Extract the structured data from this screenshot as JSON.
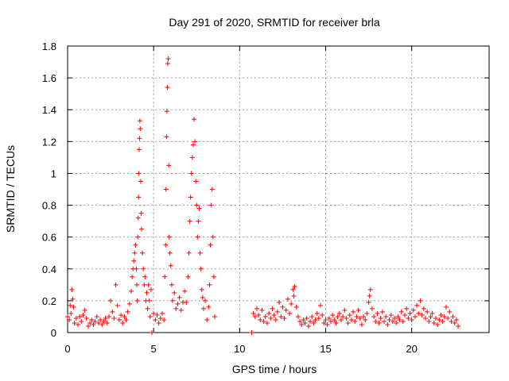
{
  "chart_data": {
    "type": "scatter",
    "title": "Day 291 of 2020, SRMTID for receiver brla",
    "xlabel": "GPS time / hours",
    "ylabel": "SRMTID / TECUs",
    "xlim": [
      0,
      24.5
    ],
    "ylim": [
      0,
      1.8
    ],
    "xticks": [
      0,
      5,
      10,
      15,
      20
    ],
    "xtick_labels": [
      "0",
      "5",
      "10",
      "15",
      "20"
    ],
    "yticks": [
      0,
      0.2,
      0.4,
      0.6,
      0.8,
      1.0,
      1.2,
      1.4,
      1.6,
      1.8
    ],
    "ytick_labels": [
      "0",
      "0.2",
      "0.4",
      "0.6",
      "0.8",
      "1",
      "1.2",
      "1.4",
      "1.6",
      "1.8"
    ],
    "grid": true,
    "marker": "+",
    "color": "#ff0000",
    "series": [
      {
        "name": "SRMTID",
        "points": [
          [
            0.0,
            0.1
          ],
          [
            0.1,
            0.08
          ],
          [
            0.15,
            0.17
          ],
          [
            0.2,
            0.12
          ],
          [
            0.25,
            0.27
          ],
          [
            0.3,
            0.21
          ],
          [
            0.35,
            0.16
          ],
          [
            0.4,
            0.06
          ],
          [
            0.5,
            0.09
          ],
          [
            0.6,
            0.05
          ],
          [
            0.7,
            0.1
          ],
          [
            0.8,
            0.07
          ],
          [
            0.9,
            0.11
          ],
          [
            1.0,
            0.14
          ],
          [
            1.1,
            0.09
          ],
          [
            1.2,
            0.04
          ],
          [
            1.3,
            0.06
          ],
          [
            1.4,
            0.08
          ],
          [
            1.5,
            0.05
          ],
          [
            1.6,
            0.07
          ],
          [
            1.7,
            0.1
          ],
          [
            1.8,
            0.06
          ],
          [
            1.9,
            0.08
          ],
          [
            2.0,
            0.05
          ],
          [
            2.1,
            0.07
          ],
          [
            2.2,
            0.09
          ],
          [
            2.3,
            0.06
          ],
          [
            2.4,
            0.1
          ],
          [
            2.5,
            0.2
          ],
          [
            2.6,
            0.13
          ],
          [
            2.7,
            0.09
          ],
          [
            2.8,
            0.3
          ],
          [
            2.9,
            0.17
          ],
          [
            3.0,
            0.08
          ],
          [
            3.1,
            0.11
          ],
          [
            3.2,
            0.06
          ],
          [
            3.3,
            0.1
          ],
          [
            3.4,
            0.08
          ],
          [
            3.5,
            0.13
          ],
          [
            3.6,
            0.18
          ],
          [
            3.7,
            0.26
          ],
          [
            3.75,
            0.35
          ],
          [
            3.8,
            0.4
          ],
          [
            3.85,
            0.45
          ],
          [
            3.9,
            0.5
          ],
          [
            3.95,
            0.55
          ],
          [
            4.0,
            0.4
          ],
          [
            4.02,
            0.3
          ],
          [
            4.05,
            0.2
          ],
          [
            4.08,
            0.6
          ],
          [
            4.1,
            0.72
          ],
          [
            4.12,
            0.85
          ],
          [
            4.14,
            1.0
          ],
          [
            4.16,
            1.15
          ],
          [
            4.18,
            1.22
          ],
          [
            4.2,
            1.33
          ],
          [
            4.22,
            1.28
          ],
          [
            4.25,
            0.95
          ],
          [
            4.28,
            0.75
          ],
          [
            4.3,
            0.65
          ],
          [
            4.35,
            0.5
          ],
          [
            4.4,
            0.4
          ],
          [
            4.45,
            0.3
          ],
          [
            4.5,
            0.35
          ],
          [
            4.55,
            0.2
          ],
          [
            4.6,
            0.25
          ],
          [
            4.65,
            0.15
          ],
          [
            4.7,
            0.3
          ],
          [
            4.75,
            0.2
          ],
          [
            4.8,
            0.1
          ],
          [
            4.85,
            0.27
          ],
          [
            4.9,
            0.0
          ],
          [
            5.0,
            0.12
          ],
          [
            5.1,
            0.08
          ],
          [
            5.2,
            0.11
          ],
          [
            5.3,
            0.06
          ],
          [
            5.4,
            0.09
          ],
          [
            5.5,
            0.12
          ],
          [
            5.6,
            0.08
          ],
          [
            5.65,
            0.35
          ],
          [
            5.7,
            0.55
          ],
          [
            5.72,
            0.9
          ],
          [
            5.75,
            1.23
          ],
          [
            5.77,
            1.39
          ],
          [
            5.8,
            1.54
          ],
          [
            5.82,
            1.69
          ],
          [
            5.85,
            1.72
          ],
          [
            5.88,
            1.05
          ],
          [
            5.9,
            0.6
          ],
          [
            5.95,
            0.5
          ],
          [
            6.0,
            0.42
          ],
          [
            6.05,
            0.3
          ],
          [
            6.1,
            0.2
          ],
          [
            6.2,
            0.25
          ],
          [
            6.3,
            0.15
          ],
          [
            6.4,
            0.18
          ],
          [
            6.5,
            0.22
          ],
          [
            6.6,
            0.14
          ],
          [
            6.7,
            0.19
          ],
          [
            6.8,
            0.26
          ],
          [
            6.9,
            0.19
          ],
          [
            7.0,
            0.35
          ],
          [
            7.05,
            0.5
          ],
          [
            7.1,
            0.7
          ],
          [
            7.15,
            0.85
          ],
          [
            7.2,
            1.0
          ],
          [
            7.25,
            1.1
          ],
          [
            7.3,
            1.18
          ],
          [
            7.35,
            1.34
          ],
          [
            7.4,
            1.2
          ],
          [
            7.45,
            0.95
          ],
          [
            7.5,
            0.8
          ],
          [
            7.55,
            0.6
          ],
          [
            7.6,
            0.7
          ],
          [
            7.65,
            0.78
          ],
          [
            7.7,
            0.5
          ],
          [
            7.75,
            0.4
          ],
          [
            7.8,
            0.27
          ],
          [
            7.85,
            0.22
          ],
          [
            7.9,
            0.15
          ],
          [
            8.0,
            0.2
          ],
          [
            8.1,
            0.08
          ],
          [
            8.2,
            0.16
          ],
          [
            8.25,
            0.3
          ],
          [
            8.3,
            0.55
          ],
          [
            8.35,
            0.8
          ],
          [
            8.4,
            0.9
          ],
          [
            8.45,
            0.6
          ],
          [
            8.5,
            0.35
          ],
          [
            8.55,
            0.1
          ],
          [
            10.7,
            0.0
          ],
          [
            10.8,
            0.12
          ],
          [
            10.9,
            0.1
          ],
          [
            11.0,
            0.15
          ],
          [
            11.1,
            0.11
          ],
          [
            11.2,
            0.08
          ],
          [
            11.3,
            0.14
          ],
          [
            11.4,
            0.07
          ],
          [
            11.5,
            0.1
          ],
          [
            11.6,
            0.06
          ],
          [
            11.7,
            0.12
          ],
          [
            11.8,
            0.09
          ],
          [
            11.9,
            0.15
          ],
          [
            12.0,
            0.11
          ],
          [
            12.1,
            0.08
          ],
          [
            12.2,
            0.13
          ],
          [
            12.3,
            0.19
          ],
          [
            12.4,
            0.1
          ],
          [
            12.5,
            0.16
          ],
          [
            12.6,
            0.09
          ],
          [
            12.7,
            0.14
          ],
          [
            12.8,
            0.21
          ],
          [
            12.9,
            0.12
          ],
          [
            13.0,
            0.18
          ],
          [
            13.1,
            0.27
          ],
          [
            13.15,
            0.23
          ],
          [
            13.2,
            0.29
          ],
          [
            13.3,
            0.16
          ],
          [
            13.4,
            0.1
          ],
          [
            13.5,
            0.07
          ],
          [
            13.6,
            0.05
          ],
          [
            13.7,
            0.08
          ],
          [
            13.8,
            0.06
          ],
          [
            13.9,
            0.09
          ],
          [
            14.0,
            0.04
          ],
          [
            14.1,
            0.07
          ],
          [
            14.2,
            0.1
          ],
          [
            14.3,
            0.06
          ],
          [
            14.4,
            0.08
          ],
          [
            14.5,
            0.12
          ],
          [
            14.6,
            0.09
          ],
          [
            14.7,
            0.17
          ],
          [
            14.8,
            0.11
          ],
          [
            14.9,
            0.06
          ],
          [
            15.0,
            0.08
          ],
          [
            15.1,
            0.05
          ],
          [
            15.2,
            0.09
          ],
          [
            15.3,
            0.07
          ],
          [
            15.4,
            0.11
          ],
          [
            15.5,
            0.08
          ],
          [
            15.6,
            0.06
          ],
          [
            15.7,
            0.1
          ],
          [
            15.8,
            0.12
          ],
          [
            15.9,
            0.08
          ],
          [
            16.0,
            0.1
          ],
          [
            16.1,
            0.14
          ],
          [
            16.2,
            0.09
          ],
          [
            16.3,
            0.06
          ],
          [
            16.4,
            0.11
          ],
          [
            16.5,
            0.08
          ],
          [
            16.6,
            0.13
          ],
          [
            16.7,
            0.07
          ],
          [
            16.8,
            0.1
          ],
          [
            16.9,
            0.14
          ],
          [
            17.0,
            0.09
          ],
          [
            17.1,
            0.05
          ],
          [
            17.2,
            0.1
          ],
          [
            17.3,
            0.08
          ],
          [
            17.4,
            0.12
          ],
          [
            17.5,
            0.19
          ],
          [
            17.55,
            0.23
          ],
          [
            17.6,
            0.27
          ],
          [
            17.7,
            0.15
          ],
          [
            17.8,
            0.1
          ],
          [
            17.9,
            0.07
          ],
          [
            18.0,
            0.12
          ],
          [
            18.1,
            0.06
          ],
          [
            18.2,
            0.09
          ],
          [
            18.3,
            0.13
          ],
          [
            18.4,
            0.07
          ],
          [
            18.5,
            0.1
          ],
          [
            18.6,
            0.05
          ],
          [
            18.7,
            0.08
          ],
          [
            18.8,
            0.11
          ],
          [
            18.9,
            0.07
          ],
          [
            19.0,
            0.09
          ],
          [
            19.1,
            0.06
          ],
          [
            19.2,
            0.1
          ],
          [
            19.3,
            0.08
          ],
          [
            19.4,
            0.13
          ],
          [
            19.5,
            0.07
          ],
          [
            19.6,
            0.11
          ],
          [
            19.7,
            0.15
          ],
          [
            19.8,
            0.09
          ],
          [
            19.9,
            0.12
          ],
          [
            20.0,
            0.08
          ],
          [
            20.1,
            0.14
          ],
          [
            20.2,
            0.1
          ],
          [
            20.3,
            0.17
          ],
          [
            20.4,
            0.12
          ],
          [
            20.5,
            0.2
          ],
          [
            20.6,
            0.11
          ],
          [
            20.7,
            0.15
          ],
          [
            20.8,
            0.09
          ],
          [
            20.9,
            0.13
          ],
          [
            21.0,
            0.07
          ],
          [
            21.1,
            0.1
          ],
          [
            21.2,
            0.12
          ],
          [
            21.3,
            0.06
          ],
          [
            21.4,
            0.09
          ],
          [
            21.5,
            0.05
          ],
          [
            21.6,
            0.08
          ],
          [
            21.7,
            0.11
          ],
          [
            21.8,
            0.07
          ],
          [
            21.9,
            0.1
          ],
          [
            22.0,
            0.16
          ],
          [
            22.1,
            0.09
          ],
          [
            22.2,
            0.13
          ],
          [
            22.3,
            0.07
          ],
          [
            22.4,
            0.1
          ],
          [
            22.5,
            0.06
          ],
          [
            22.6,
            0.08
          ],
          [
            22.7,
            0.04
          ]
        ]
      }
    ]
  }
}
